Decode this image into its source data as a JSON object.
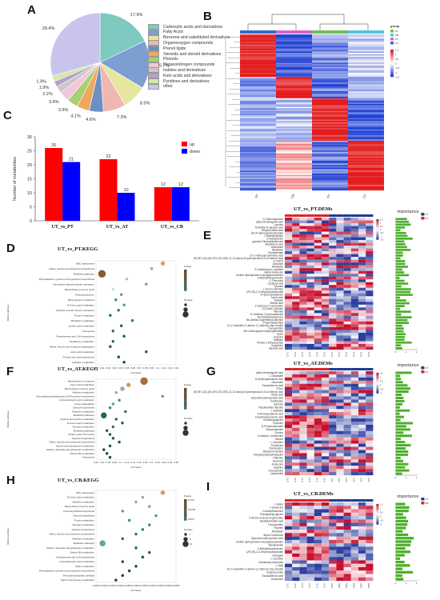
{
  "panels": {
    "A": {
      "letter": "A",
      "chart_data": {
        "type": "pie",
        "categories": [
          "Carboxylic acids and derivatives",
          "Fatty Acyls",
          "Benzene and substituted derivatives",
          "Organooxygen compounds",
          "Prenol lipids",
          "Steroids and steroid derivatives",
          "Phenols",
          "Organonitrogen compounds",
          "Indoles and derivatives",
          "Keto acids and derivatives",
          "Pyridines and derivatives",
          "other"
        ],
        "values": [
          17.9,
          15.7,
          8.0,
          7.3,
          4.6,
          4.1,
          3.6,
          3.4,
          2.2,
          1.9,
          1.9,
          29.4
        ],
        "labels": [
          "17.9%",
          "15.7%",
          "8.0%",
          "7.3%",
          "4.6%",
          "4.1%",
          "3.6%",
          "3.4%",
          "2.2%",
          "1.9%",
          "1.9%",
          "29.4%"
        ],
        "colors": [
          "#7ec9c0",
          "#7d9ed1",
          "#e6e6a0",
          "#f0b6b0",
          "#6c8fc4",
          "#f0a860",
          "#a8d070",
          "#f2c6dc",
          "#c8c8c8",
          "#b7a0cc",
          "#d2e8a8",
          "#c8c4ec"
        ],
        "legend_placement": "right"
      }
    },
    "B": {
      "letter": "B",
      "legend_title": "group",
      "legend_groups": [
        "AT",
        "CB",
        "PT",
        "UT"
      ],
      "group_colors": [
        "#6fc04c",
        "#4ac8e0",
        "#e060c8",
        "#2c6cd4"
      ],
      "scale_ticks": [
        "1.5",
        "1",
        "0.5",
        "0",
        "-0.5",
        "-1",
        "-1.5"
      ],
      "col_labels": [
        "AT",
        "CB",
        "PT",
        "UT"
      ],
      "colors": {
        "high": "#e31a1c",
        "mid": "#ffffff",
        "low": "#1f3fd4"
      }
    },
    "C": {
      "letter": "C",
      "chart_data": {
        "type": "bar",
        "categories": [
          "UT_vs_PT",
          "UT_vs_AT",
          "UT_vs_CB"
        ],
        "series": [
          {
            "name": "up",
            "values": [
              26,
              22,
              12
            ],
            "color": "#ff0000"
          },
          {
            "name": "down",
            "values": [
              21,
              10,
              12
            ],
            "color": "#0000ff"
          }
        ],
        "ylabel": "Number of metabolites",
        "ylim": [
          0,
          30
        ],
        "yticks": [
          "0",
          "5",
          "10",
          "15",
          "20",
          "25",
          "30"
        ],
        "legend_placement": "top-right"
      }
    },
    "D": {
      "letter": "D",
      "title": "UT_vs_PT.KEGG",
      "ylabel": "KEGG pathway",
      "xlabel": "rich factor",
      "pvalue_label": "Pvalue",
      "number_label": "Number",
      "pathways": [
        "ABC transporters",
        "Valine, leucine and isoleucine biosynthesis",
        "Metabolic pathways",
        "Phenylalanine, tyrosine and tryptophan biosynthesis",
        "Neuroactive ligand-receptor interaction",
        "Biosynthesis of amino acids",
        "Phototransduction",
        "Biosynthesis of cofactors",
        "D-Amino acid metabolism",
        "Vascular smooth muscle contraction",
        "Purine metabolism",
        "Riboflavin metabolism",
        "Linoleic acid metabolism",
        "Ferroptosis",
        "Pantothenate and CoA biosynthesis",
        "Glutathione metabolism",
        "Valine, leucine and isoleucine degradation",
        "Lipoic acid metabolism",
        "Primary bile acid biosynthesis",
        "Histidine metabolism"
      ],
      "x_ticks": [
        "0.03",
        "0.01",
        "0.02",
        "0.03",
        "0.04",
        "0.05",
        "0.06",
        "0.07",
        "0.08",
        "0.09",
        "0.1",
        "0.11",
        "0.12",
        "0.13"
      ],
      "rich": [
        0.12,
        0.1,
        0.01,
        0.055,
        0.09,
        0.03,
        0.045,
        0.035,
        0.05,
        0.04,
        0.025,
        0.065,
        0.045,
        0.03,
        0.05,
        0.03,
        0.025,
        0.09,
        0.04,
        0.05
      ],
      "sizes": [
        2,
        1,
        4,
        1,
        1,
        1,
        1,
        1,
        1,
        1,
        1,
        1,
        1,
        1,
        1,
        1,
        1,
        1,
        1,
        1
      ],
      "colors": [
        "#d9a070",
        "#c89070",
        "#8b5a2b",
        "#aac0c0",
        "#6fa0a0",
        "#bde0e0",
        "#5a9a9a",
        "#3a8a8a",
        "#4a9a9a",
        "#2a7a7a",
        "#1a6a6a",
        "#2a7a7a",
        "#1a5a5a",
        "#2a6a6a",
        "#1a5a5a",
        "#2a6a6a",
        "#1a5a5a",
        "#1a5a5a",
        "#1a4a4a",
        "#1a4a4a"
      ]
    },
    "E": {
      "letter": "E",
      "title": "UT_vs_PT.DEMs",
      "importance_label": "importance",
      "legend_groups": [
        "UT",
        "PT"
      ],
      "metabolites": [
        "1,2-Benzoquinone",
        "alpha-Hederagenin acid",
        "Leucine",
        "N-Methyl-D-aspartic acid",
        "Dihydrocoffeic acid",
        "(R)-4-Hydroxyphenylacetate",
        "1-Methylhistidine",
        "N-Acetylserine",
        "gamma-Glutamylisoleucine",
        "Stearidonic acid",
        "Adenosine",
        "Riboflavin",
        "Pantothenate",
        "13-L-Hydroperoxylinoleic acid",
        "(9Z,9E,14Z)-(8x,11R,12S,15S)-11,12-epoxy-8-hydroxyicosa-5,9,14-trienoic acid",
        "11-HETE",
        "Arecoline",
        "Riboflavin",
        "S-Glutathionyl-L-cysteine",
        "Valine-Isoleucine",
        "Uridine diphosphate-N-acetylglucosamine",
        "5-Methylthioadenosine",
        "L-Threonine",
        "Cysteinyl acid",
        "Tyrosine",
        "L-Homo-Citrulline",
        "(2R,3S)-2,3-Dihydroxybutanoate",
        "6-Hydroxymelatonin",
        "Lipoic acid",
        "Butylide",
        "Sterkin acid",
        "2-Hydroxy-3'-carboxylate",
        "(S)-Sodio-Tyrosine",
        "Mannitol",
        "D-Ornithine 3-Hydroxylamine",
        "Tert-Butylhydroquinone",
        "N6-(Delta2-Isopentenyl)-adenine",
        "Propionylcarnitine",
        "10-1-Guanidino-3-amino-1,2-dideoxy-myo-inositol",
        "Deoxyuridine",
        "N6-Carboxylysine dihydrogenfatide",
        "Epsol",
        "Arginine",
        "Histidine",
        "Proline 1-Ethylsulphate",
        "Isosparine",
        "Aspartyl acid"
      ],
      "colors": {
        "high": "#c8102e",
        "mid": "#ffffff",
        "low": "#2c3e9e"
      },
      "scale_ticks": [
        "1.5",
        "1",
        "0.5",
        "0",
        "-0.5",
        "-1",
        "-1.5"
      ],
      "col_labels": [
        "UT1",
        "UT2",
        "UT3",
        "UT4",
        "UT5",
        "UT6",
        "PT1",
        "PT2",
        "PT3",
        "PT4",
        "PT5",
        "PT6"
      ],
      "importance_axis": [
        "0",
        "1",
        "2"
      ]
    },
    "F": {
      "letter": "F",
      "title": "UT_vs_AT.KEGG",
      "ylabel": "KEGG pathway",
      "xlabel": "rich factor",
      "pvalue_label": "Pvalue",
      "number_label": "Number",
      "pathways": [
        "Biosynthesis of cofactors",
        "Lipoic acid metabolism",
        "Biosynthesis of amino acids",
        "Histidine metabolism",
        "Glycosylphosphatidylinositol (GPI)-anchor biosynthesis",
        "2-Oxocarboxylic acid metabolism",
        "Lysine degradation",
        "Steroid biosynthesis",
        "Thiamine metabolism",
        "Metabolic pathways",
        "Arginine and proline metabolism",
        "D-Amino acid metabolism",
        "Tyrosine metabolism",
        "Metabolic pathways",
        "Citrate cycle (TCA cycle)",
        "Arginine biosynthesis",
        "Valine, leucine and isoleucine biosynthesis",
        "Taurine and hypotaurine metabolism",
        "Alanine, aspartate and glutamate metabolism",
        "Vitamin B6 metabolism",
        "Ferroptosis"
      ],
      "x_ticks": [
        "0.02",
        "0.04",
        "0.06",
        "0.08",
        "0.1",
        "0.12",
        "0.14",
        "0.16",
        "0.18",
        "0.2",
        "0.22",
        "0.24",
        "0.26",
        "0.28"
      ],
      "rich": [
        0.16,
        0.11,
        0.09,
        0.07,
        0.22,
        0.08,
        0.06,
        0.05,
        0.1,
        0.03,
        0.07,
        0.09,
        0.06,
        0.04,
        0.05,
        0.06,
        0.08,
        0.05,
        0.03,
        0.04,
        0.05
      ],
      "sizes": [
        4,
        2,
        2,
        1,
        1,
        1,
        1,
        1,
        1,
        3,
        1,
        1,
        1,
        1,
        1,
        1,
        1,
        1,
        1,
        1,
        1
      ],
      "colors": [
        "#a57040",
        "#c49a6c",
        "#9aaa90",
        "#7ab0a0",
        "#4aa090",
        "#3a9080",
        "#5aa090",
        "#3a8070",
        "#2a7060",
        "#1a6a5a",
        "#2a7060",
        "#1a6050",
        "#2a6a5a",
        "#1a5a4a",
        "#1a5a4a",
        "#1a5040",
        "#1a5040",
        "#1a5040",
        "#1a4a3a",
        "#1a4a3a",
        "#1a4a3a"
      ]
    },
    "G": {
      "letter": "G",
      "title": "UT_vs_AT.DEMs",
      "importance_label": "importance",
      "legend_groups": [
        "UT",
        "AT"
      ],
      "metabolites": [
        "alpha-Hederagenin acid",
        "L-Glutamate",
        "10-Hydroxydecanoic acid",
        "Gluconate",
        "Eicosadienoic acid",
        "PGA1",
        "(9Z,9E,14Z)-(8x,11R,12S,15S)-11,12-epoxy-8-hydroxyicosa-5,9,14-trienoic acid",
        "Orotic acid",
        "Glycochenodeoxycholic acid",
        "Xanthosine",
        "Adenine",
        "Nicotinamide riboside",
        "L-Histidine",
        "5-Aminopentanoic acid",
        "6-Hydroxykynurenic acid",
        "Cinnamoylglycine",
        "Tyramine",
        "D-Phosphoserinate",
        "Glycerylalanine",
        "Choline",
        "N-Acetyl-L-methionine",
        "Taurine",
        "L-Carnitine",
        "Pyridoxine",
        "Norcamphor",
        "Methyl-N-Pyridine",
        "Dehydrophytosphingosine",
        "Thiamine",
        "Hexanoic",
        "Isoleucine",
        "Arginine",
        "Glucosamine",
        "Lysinamide"
      ],
      "colors": {
        "high": "#c8102e",
        "mid": "#ffffff",
        "low": "#2c3e9e"
      },
      "scale_ticks": [
        "1.5",
        "1",
        "0.5",
        "0",
        "-0.5",
        "-1"
      ],
      "col_labels": [
        "UT1",
        "UT2",
        "UT3",
        "UT4",
        "UT5",
        "UT6",
        "AT1",
        "AT2",
        "AT3",
        "AT4",
        "AT5",
        "AT6"
      ],
      "importance_axis": [
        "0",
        "1",
        "2"
      ]
    },
    "H": {
      "letter": "H",
      "title": "UT_vs_CB.KEGG",
      "ylabel": "KEGG pathway",
      "xlabel": "rich factor",
      "pvalue_label": "Pvalue",
      "pvalue_ticks": [
        "0.100",
        "0.0755",
        "0.050"
      ],
      "number_label": "Number",
      "number_ticks": [
        "1",
        "5",
        "10"
      ],
      "pathways": [
        "ABC transporters",
        "D-Amino acid metabolism",
        "Histidine metabolism",
        "Biosynthesis of amino acids",
        "Aminoacyl-tRNA biosynthesis",
        "Steroid biosynthesis",
        "Purine metabolism",
        "Nitrogen metabolism",
        "Arginine biosynthesis",
        "Valine, leucine and isoleucine biosynthesis",
        "Histidine metabolism",
        "Metabolic pathways",
        "Alanine, aspartate and glutamate metabolism",
        "Vitamin B6 metabolism",
        "Pantothenate and CoA biosynthesis",
        "2-Oxocarboxylic acid metabolism",
        "Sulfur metabolism",
        "Phenylalanine, tyrosine and tryptophan biosynthesis",
        "Peroxisal phosphate pathway",
        "Starch and sucrose metabolism"
      ],
      "x_ticks": [
        "0.0000",
        "0.0100",
        "0.0150",
        "0.0200",
        "0.0250",
        "0.0300",
        "0.0350",
        "0.0400",
        "0.0450",
        "0.0500",
        "0.0550"
      ],
      "rich": [
        0.05,
        0.035,
        0.03,
        0.04,
        0.02,
        0.045,
        0.025,
        0.04,
        0.035,
        0.03,
        0.02,
        0.005,
        0.03,
        0.04,
        0.035,
        0.02,
        0.03,
        0.025,
        0.02,
        0.015
      ],
      "sizes": [
        2,
        1,
        1,
        1,
        1,
        1,
        1,
        1,
        1,
        1,
        1,
        3,
        1,
        1,
        1,
        1,
        1,
        1,
        1,
        1
      ],
      "colors": [
        "#d69a58",
        "#a0a890",
        "#80b0a0",
        "#70a898",
        "#58a090",
        "#489888",
        "#389080",
        "#308878",
        "#288070",
        "#207868",
        "#207060",
        "#55aaa0",
        "#186858",
        "#186050",
        "#185848",
        "#185040",
        "#184838",
        "#184838",
        "#184030",
        "#184030"
      ]
    },
    "I": {
      "letter": "I",
      "title": "UT_vs_CB.DEMs",
      "importance_label": "importance",
      "legend_groups": [
        "UT",
        "CB"
      ],
      "metabolites": [
        "L-Valine",
        "L-Isoleucine",
        "N-Acetylhistamine",
        "Phenylacetyl-glycine",
        "2-Amino-2-deoxy-D-gluconate",
        "Vanillylmandelic acid",
        "Deoxyuridine",
        "Thymine",
        "Riboflavin",
        "Alpha-Tocotrienol",
        "Glycochenodeoxycholic acid",
        "Uridine diphosphate-N-acetylglucosamine",
        "Nicotinamide",
        "5-Methylthioadenosine",
        "(2R,3S)-2,3-Dihydroxybutanoate",
        "Estragole",
        "L-Carnitine",
        "Carbamoyl phosphate",
        "L-Valyl",
        "1D-1-Guanidino-3-amino-1,2-dideoxy-myo-inositol",
        "Isoglucuronide",
        "Eicosadienoic acid",
        "Leucianine"
      ],
      "colors": {
        "high": "#c8102e",
        "mid": "#ffffff",
        "low": "#2c3e9e"
      },
      "scale_ticks": [
        "1.5",
        "1",
        "0.5",
        "0",
        "-0.5",
        "-1"
      ],
      "col_labels": [
        "UT1",
        "UT2",
        "UT3",
        "UT4",
        "UT5",
        "UT6",
        "CB1",
        "CB2",
        "CB3",
        "CB4",
        "CB5",
        "CB6"
      ],
      "importance_axis": [
        "0",
        "1",
        "2"
      ]
    }
  }
}
